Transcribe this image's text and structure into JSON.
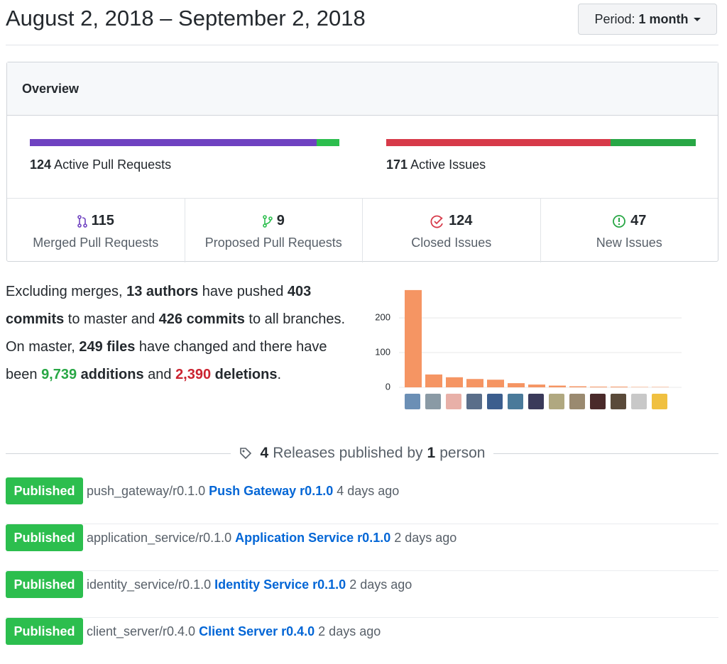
{
  "header": {
    "title": "August 2, 2018 – September 2, 2018",
    "period": {
      "label": "Period:",
      "value": "1 month"
    }
  },
  "overview": {
    "title": "Overview",
    "active": [
      {
        "count": 124,
        "label": "Active Pull Requests"
      },
      {
        "count": 171,
        "label": "Active Issues"
      }
    ],
    "stats": [
      {
        "count": 115,
        "label": "Merged Pull Requests",
        "color": "#6f42c1"
      },
      {
        "count": 9,
        "label": "Proposed Pull Requests",
        "color": "#2cbe4e"
      },
      {
        "count": 124,
        "label": "Closed Issues",
        "color": "#d73a49"
      },
      {
        "count": 47,
        "label": "New Issues",
        "color": "#28a745"
      }
    ]
  },
  "summary": [
    {
      "text": "Excluding merges, ",
      "style": "plain"
    },
    {
      "text": "13 authors",
      "style": "bold"
    },
    {
      "text": " have pushed ",
      "style": "plain"
    },
    {
      "text": "403 commits",
      "style": "bold"
    },
    {
      "text": " to master and ",
      "style": "plain"
    },
    {
      "text": "426 commits",
      "style": "bold"
    },
    {
      "text": " to all branches. On master, ",
      "style": "plain"
    },
    {
      "text": "249 files",
      "style": "bold"
    },
    {
      "text": " have changed and there have been ",
      "style": "plain"
    },
    {
      "text": "9,739",
      "style": "added"
    },
    {
      "text": " additions",
      "style": "bold"
    },
    {
      "text": " and ",
      "style": "plain"
    },
    {
      "text": "2,390",
      "style": "removed"
    },
    {
      "text": " deletions",
      "style": "bold"
    },
    {
      "text": ".",
      "style": "plain"
    }
  ],
  "chart_data": {
    "type": "bar",
    "values": [
      280,
      37,
      29,
      24,
      22,
      12,
      8,
      5,
      3,
      2,
      2,
      1,
      1
    ],
    "color": "#f59563",
    "ylim": [
      0,
      290
    ],
    "yticks": [
      0,
      100,
      200
    ],
    "grid": true
  },
  "releases": {
    "heading": [
      {
        "text": "4",
        "bold": true
      },
      {
        "text": "Releases published by",
        "bold": false
      },
      {
        "text": "1",
        "bold": true
      },
      {
        "text": "person",
        "bold": false
      }
    ],
    "items": [
      {
        "status": "Published",
        "tag": "push_gateway/r0.1.0",
        "name": "Push Gateway r0.1.0",
        "time": "4 days ago"
      },
      {
        "status": "Published",
        "tag": "application_service/r0.1.0",
        "name": "Application Service r0.1.0",
        "time": "2 days ago"
      },
      {
        "status": "Published",
        "tag": "identity_service/r0.1.0",
        "name": "Identity Service r0.1.0",
        "time": "2 days ago"
      },
      {
        "status": "Published",
        "tag": "client_server/r0.4.0",
        "name": "Client Server r0.4.0",
        "time": "2 days ago"
      }
    ]
  }
}
